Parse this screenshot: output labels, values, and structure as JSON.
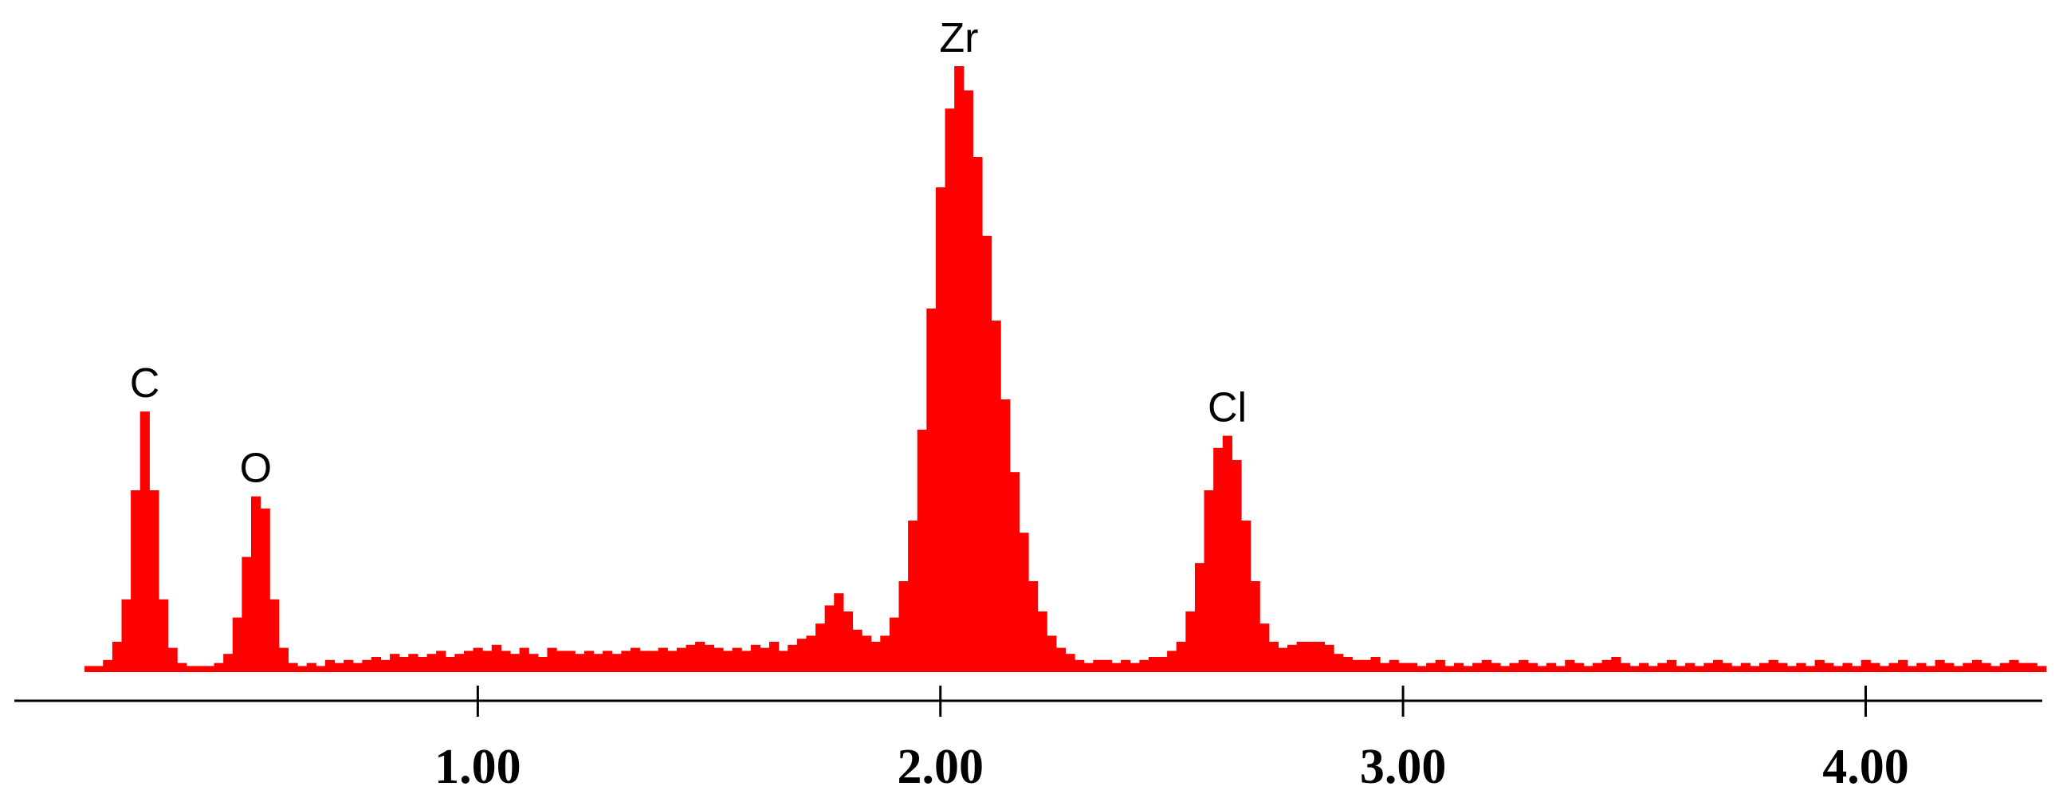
{
  "chart_data": {
    "type": "spectrum",
    "color": "#ff0000",
    "xlim": [
      0,
      4.38
    ],
    "ylim": [
      0,
      100
    ],
    "xticks": [
      {
        "value": 1,
        "label": "1.00"
      },
      {
        "value": 2,
        "label": "2.00"
      },
      {
        "value": 3,
        "label": "3.00"
      },
      {
        "value": 4,
        "label": "4.00"
      }
    ],
    "annotations": [
      {
        "text": "C",
        "x": 0.28
      },
      {
        "text": "O",
        "x": 0.52
      },
      {
        "text": "Zr",
        "x": 2.04
      },
      {
        "text": "Cl",
        "x": 2.62
      }
    ],
    "x": [
      0.16,
      0.18,
      0.2,
      0.22,
      0.24,
      0.26,
      0.28,
      0.3,
      0.32,
      0.34,
      0.36,
      0.38,
      0.4,
      0.42,
      0.44,
      0.46,
      0.48,
      0.5,
      0.52,
      0.54,
      0.56,
      0.58,
      0.6,
      0.62,
      0.64,
      0.66,
      0.68,
      0.7,
      0.72,
      0.74,
      0.76,
      0.78,
      0.8,
      0.82,
      0.84,
      0.86,
      0.88,
      0.9,
      0.92,
      0.94,
      0.96,
      0.98,
      1.0,
      1.02,
      1.04,
      1.06,
      1.08,
      1.1,
      1.12,
      1.14,
      1.16,
      1.18,
      1.2,
      1.22,
      1.24,
      1.26,
      1.28,
      1.3,
      1.32,
      1.34,
      1.36,
      1.38,
      1.4,
      1.42,
      1.44,
      1.46,
      1.48,
      1.5,
      1.52,
      1.54,
      1.56,
      1.58,
      1.6,
      1.62,
      1.64,
      1.66,
      1.68,
      1.7,
      1.72,
      1.74,
      1.76,
      1.78,
      1.8,
      1.82,
      1.84,
      1.86,
      1.88,
      1.9,
      1.92,
      1.94,
      1.96,
      1.98,
      2.0,
      2.02,
      2.04,
      2.06,
      2.08,
      2.1,
      2.12,
      2.14,
      2.16,
      2.18,
      2.2,
      2.22,
      2.24,
      2.26,
      2.28,
      2.3,
      2.32,
      2.34,
      2.36,
      2.38,
      2.4,
      2.42,
      2.44,
      2.46,
      2.48,
      2.5,
      2.52,
      2.54,
      2.56,
      2.58,
      2.6,
      2.62,
      2.64,
      2.66,
      2.68,
      2.7,
      2.72,
      2.74,
      2.76,
      2.78,
      2.8,
      2.82,
      2.84,
      2.86,
      2.88,
      2.9,
      2.92,
      2.94,
      2.96,
      2.98,
      3.0,
      3.02,
      3.04,
      3.06,
      3.08,
      3.1,
      3.12,
      3.14,
      3.16,
      3.18,
      3.2,
      3.22,
      3.24,
      3.26,
      3.28,
      3.3,
      3.32,
      3.34,
      3.36,
      3.38,
      3.4,
      3.42,
      3.44,
      3.46,
      3.48,
      3.5,
      3.52,
      3.54,
      3.56,
      3.58,
      3.6,
      3.62,
      3.64,
      3.66,
      3.68,
      3.7,
      3.72,
      3.74,
      3.76,
      3.78,
      3.8,
      3.82,
      3.84,
      3.86,
      3.88,
      3.9,
      3.92,
      3.94,
      3.96,
      3.98,
      4.0,
      4.02,
      4.04,
      4.06,
      4.08,
      4.1,
      4.12,
      4.14,
      4.16,
      4.18,
      4.2,
      4.22,
      4.24,
      4.26,
      4.28,
      4.3,
      4.32,
      4.34,
      4.36,
      4.38
    ],
    "values": [
      1,
      1,
      2,
      5,
      12,
      30,
      43,
      30,
      12,
      4,
      1.5,
      1,
      1,
      1,
      1.5,
      3,
      9,
      19,
      29,
      27,
      12,
      4,
      1.5,
      1,
      1.5,
      1,
      2,
      1.5,
      2,
      1.5,
      2,
      2.5,
      2,
      3,
      2.5,
      3,
      2.5,
      3,
      3.5,
      2.5,
      3,
      3.5,
      4,
      3.5,
      4.5,
      3.5,
      3,
      4,
      3,
      2.5,
      4,
      3.5,
      3.5,
      3,
      3.5,
      3,
      3.5,
      3,
      3.5,
      4,
      3.5,
      3.5,
      4,
      3.5,
      4,
      4.5,
      5,
      4.5,
      4,
      3.5,
      4,
      3.5,
      4.5,
      4,
      5,
      3.5,
      4.5,
      5.5,
      6,
      8,
      11,
      13,
      10,
      7,
      6,
      5,
      6,
      9,
      15,
      25,
      40,
      60,
      80,
      93,
      100,
      96,
      85,
      72,
      58,
      45,
      33,
      23,
      15,
      10,
      6,
      4,
      3,
      2,
      1.5,
      2,
      2,
      1.5,
      2,
      1.5,
      2,
      2.5,
      2.5,
      3.5,
      5,
      10,
      18,
      30,
      37,
      39,
      35,
      25,
      15,
      8,
      5,
      4,
      4.5,
      5,
      5,
      5,
      4.5,
      3,
      2.5,
      2,
      2,
      2.5,
      1.5,
      2,
      1.5,
      1.5,
      1,
      1.5,
      2,
      1,
      1.5,
      1,
      1.5,
      2,
      1.5,
      1,
      1.5,
      2,
      1.5,
      1,
      1.5,
      1,
      2,
      1.5,
      1,
      1.5,
      2,
      2.5,
      1.5,
      1,
      1.5,
      1,
      1.5,
      2,
      1,
      1.5,
      1,
      1.5,
      2,
      1.5,
      1,
      1.5,
      1,
      1.5,
      2,
      1.5,
      1,
      1.5,
      1,
      2,
      1.5,
      1,
      1.5,
      1,
      2,
      1.5,
      1,
      1.5,
      2,
      1,
      1.5,
      1,
      2,
      1.5,
      1,
      1.5,
      2,
      1.5,
      1,
      1.5,
      2,
      1.5,
      1.5,
      1
    ]
  }
}
